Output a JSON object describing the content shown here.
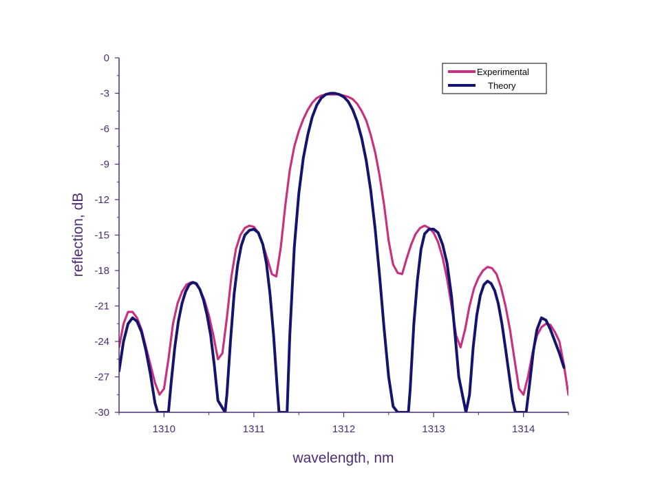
{
  "chart_data": {
    "type": "line",
    "title": "",
    "xlabel": "wavelength, nm",
    "ylabel": "reflection, dB",
    "xlim": [
      1309.5,
      1314.5
    ],
    "ylim": [
      -30,
      0
    ],
    "x_ticks": [
      1310,
      1311,
      1312,
      1313,
      1314
    ],
    "x_tick_labels": [
      "1310",
      "1311",
      "1312",
      "1313",
      "1314"
    ],
    "y_ticks": [
      0,
      -3,
      -6,
      -9,
      -12,
      -15,
      -18,
      -21,
      -24,
      -27,
      -30
    ],
    "y_tick_labels": [
      "0",
      "-3",
      "-6",
      "-9",
      "-12",
      "-15",
      "-18",
      "-21",
      "-24",
      "-27",
      "-30"
    ],
    "grid": false,
    "legend_position": "top-right",
    "axis_color": "#4b2d75",
    "series": [
      {
        "name": "Experimental",
        "color": "#c8317f",
        "x": [
          1309.5,
          1309.55,
          1309.6,
          1309.65,
          1309.7,
          1309.75,
          1309.8,
          1309.85,
          1309.9,
          1309.95,
          1310.0,
          1310.05,
          1310.1,
          1310.15,
          1310.2,
          1310.25,
          1310.3,
          1310.35,
          1310.4,
          1310.45,
          1310.5,
          1310.55,
          1310.6,
          1310.65,
          1310.7,
          1310.75,
          1310.8,
          1310.85,
          1310.9,
          1310.95,
          1311.0,
          1311.05,
          1311.1,
          1311.15,
          1311.2,
          1311.25,
          1311.3,
          1311.35,
          1311.4,
          1311.45,
          1311.5,
          1311.55,
          1311.6,
          1311.65,
          1311.7,
          1311.75,
          1311.8,
          1311.85,
          1311.9,
          1311.95,
          1312.0,
          1312.05,
          1312.1,
          1312.15,
          1312.2,
          1312.25,
          1312.3,
          1312.35,
          1312.4,
          1312.45,
          1312.5,
          1312.55,
          1312.6,
          1312.65,
          1312.7,
          1312.75,
          1312.8,
          1312.85,
          1312.9,
          1312.95,
          1313.0,
          1313.05,
          1313.1,
          1313.15,
          1313.2,
          1313.25,
          1313.3,
          1313.35,
          1313.4,
          1313.45,
          1313.5,
          1313.55,
          1313.6,
          1313.65,
          1313.7,
          1313.75,
          1313.8,
          1313.85,
          1313.9,
          1313.95,
          1314.0,
          1314.05,
          1314.1,
          1314.15,
          1314.2,
          1314.25,
          1314.3,
          1314.35,
          1314.4,
          1314.45,
          1314.5
        ],
        "y": [
          -24.5,
          -22.5,
          -21.5,
          -21.5,
          -22.0,
          -23.0,
          -24.5,
          -26.0,
          -27.5,
          -28.5,
          -28.0,
          -25.5,
          -22.5,
          -20.8,
          -19.8,
          -19.2,
          -19.0,
          -19.1,
          -19.6,
          -20.5,
          -21.8,
          -23.5,
          -25.5,
          -25.0,
          -22.0,
          -18.5,
          -16.2,
          -15.0,
          -14.4,
          -14.2,
          -14.3,
          -14.8,
          -15.8,
          -17.0,
          -18.3,
          -18.5,
          -16.0,
          -12.5,
          -9.5,
          -7.5,
          -6.2,
          -5.2,
          -4.4,
          -3.8,
          -3.4,
          -3.2,
          -3.1,
          -3.1,
          -3.1,
          -3.1,
          -3.2,
          -3.3,
          -3.5,
          -3.9,
          -4.5,
          -5.3,
          -6.5,
          -8.0,
          -10.0,
          -12.5,
          -15.5,
          -17.5,
          -18.2,
          -18.3,
          -17.0,
          -15.8,
          -14.9,
          -14.4,
          -14.2,
          -14.4,
          -14.8,
          -15.6,
          -16.9,
          -18.7,
          -21.0,
          -23.5,
          -24.5,
          -23.0,
          -21.0,
          -19.5,
          -18.6,
          -18.0,
          -17.7,
          -17.8,
          -18.3,
          -19.4,
          -21.0,
          -23.0,
          -25.5,
          -28.0,
          -28.5,
          -27.0,
          -25.0,
          -23.5,
          -22.8,
          -22.5,
          -22.6,
          -23.2,
          -24.0,
          -26.0,
          -28.5
        ]
      },
      {
        "name": "Theory",
        "color": "#14146e",
        "x": [
          1309.5,
          1309.55,
          1309.6,
          1309.65,
          1309.7,
          1309.75,
          1309.8,
          1309.85,
          1309.9,
          1309.93,
          1310.05,
          1310.08,
          1310.12,
          1310.16,
          1310.2,
          1310.24,
          1310.28,
          1310.32,
          1310.36,
          1310.4,
          1310.44,
          1310.48,
          1310.52,
          1310.56,
          1310.6,
          1310.68,
          1310.7,
          1310.74,
          1310.78,
          1310.82,
          1310.86,
          1310.9,
          1310.95,
          1311.0,
          1311.05,
          1311.1,
          1311.14,
          1311.18,
          1311.22,
          1311.26,
          1311.28,
          1311.37,
          1311.4,
          1311.45,
          1311.5,
          1311.55,
          1311.6,
          1311.65,
          1311.7,
          1311.75,
          1311.8,
          1311.85,
          1311.9,
          1311.95,
          1312.0,
          1312.05,
          1312.1,
          1312.15,
          1312.2,
          1312.25,
          1312.3,
          1312.35,
          1312.4,
          1312.45,
          1312.5,
          1312.55,
          1312.6,
          1312.63,
          1312.72,
          1312.74,
          1312.78,
          1312.82,
          1312.86,
          1312.9,
          1312.95,
          1313.0,
          1313.05,
          1313.1,
          1313.15,
          1313.2,
          1313.24,
          1313.28,
          1313.36,
          1313.4,
          1313.44,
          1313.48,
          1313.52,
          1313.56,
          1313.6,
          1313.64,
          1313.68,
          1313.72,
          1313.76,
          1313.8,
          1313.84,
          1313.88,
          1313.91,
          1314.03,
          1314.07,
          1314.11,
          1314.15,
          1314.2,
          1314.25,
          1314.3,
          1314.35,
          1314.4,
          1314.45
        ],
        "y": [
          -26.5,
          -24.0,
          -22.5,
          -22.0,
          -22.3,
          -23.2,
          -24.8,
          -26.8,
          -29.2,
          -30.0,
          -30.0,
          -27.5,
          -24.5,
          -22.3,
          -20.8,
          -19.8,
          -19.2,
          -19.0,
          -19.1,
          -19.6,
          -20.5,
          -21.8,
          -23.5,
          -26.0,
          -29.0,
          -30.0,
          -28.5,
          -24.0,
          -20.0,
          -17.5,
          -15.9,
          -15.0,
          -14.6,
          -14.5,
          -14.8,
          -15.8,
          -17.4,
          -20.0,
          -23.5,
          -28.0,
          -30.0,
          -30.0,
          -23.5,
          -16.0,
          -11.5,
          -8.5,
          -6.5,
          -5.0,
          -4.0,
          -3.4,
          -3.1,
          -3.0,
          -3.0,
          -3.1,
          -3.3,
          -3.7,
          -4.4,
          -5.4,
          -6.8,
          -8.7,
          -11.2,
          -14.5,
          -18.5,
          -23.0,
          -27.0,
          -29.5,
          -30.0,
          -30.0,
          -30.0,
          -28.0,
          -22.5,
          -18.8,
          -16.2,
          -14.9,
          -14.5,
          -14.5,
          -14.8,
          -15.8,
          -17.4,
          -20.2,
          -23.5,
          -27.0,
          -30.0,
          -28.5,
          -24.5,
          -21.8,
          -20.1,
          -19.2,
          -18.9,
          -19.1,
          -19.7,
          -20.8,
          -22.5,
          -24.6,
          -26.8,
          -29.0,
          -30.0,
          -30.0,
          -27.5,
          -24.8,
          -23.0,
          -22.0,
          -22.2,
          -23.0,
          -24.0,
          -25.0,
          -26.2
        ]
      }
    ]
  }
}
